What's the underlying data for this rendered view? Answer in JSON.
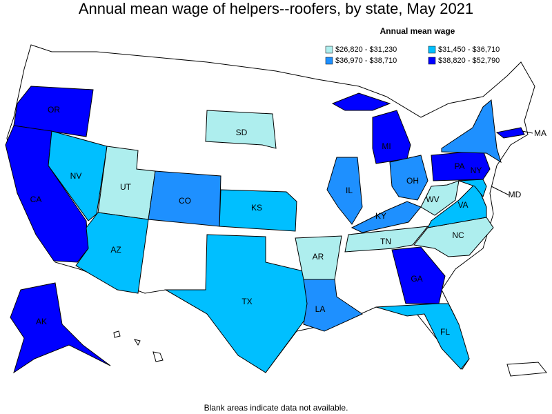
{
  "title": "Annual mean wage of helpers--roofers, by state, May 2021",
  "legend": {
    "title": "Annual mean wage",
    "items": [
      {
        "label": "$26,820 - $31,230",
        "color": "#aeeeee"
      },
      {
        "label": "$31,450 - $36,710",
        "color": "#00bfff"
      },
      {
        "label": "$36,970 - $38,710",
        "color": "#1e90ff"
      },
      {
        "label": "$38,820 - $52,790",
        "color": "#0000ff"
      }
    ]
  },
  "states": [
    {
      "abbr": "OR",
      "bin": 3
    },
    {
      "abbr": "CA",
      "bin": 3
    },
    {
      "abbr": "NV",
      "bin": 1
    },
    {
      "abbr": "UT",
      "bin": 0
    },
    {
      "abbr": "AZ",
      "bin": 1
    },
    {
      "abbr": "CO",
      "bin": 2
    },
    {
      "abbr": "SD",
      "bin": 0
    },
    {
      "abbr": "KS",
      "bin": 1
    },
    {
      "abbr": "TX",
      "bin": 1
    },
    {
      "abbr": "AR",
      "bin": 0
    },
    {
      "abbr": "LA",
      "bin": 2
    },
    {
      "abbr": "IL",
      "bin": 2
    },
    {
      "abbr": "MI",
      "bin": 3
    },
    {
      "abbr": "OH",
      "bin": 2
    },
    {
      "abbr": "KY",
      "bin": 2
    },
    {
      "abbr": "TN",
      "bin": 0
    },
    {
      "abbr": "GA",
      "bin": 3
    },
    {
      "abbr": "FL",
      "bin": 1
    },
    {
      "abbr": "NC",
      "bin": 0
    },
    {
      "abbr": "VA",
      "bin": 1
    },
    {
      "abbr": "WV",
      "bin": 0
    },
    {
      "abbr": "PA",
      "bin": 3
    },
    {
      "abbr": "NY",
      "bin": 2
    },
    {
      "abbr": "MD",
      "bin": 1
    },
    {
      "abbr": "MA",
      "bin": 3
    },
    {
      "abbr": "AK",
      "bin": 3
    }
  ],
  "note": "Blank areas indicate data not available."
}
